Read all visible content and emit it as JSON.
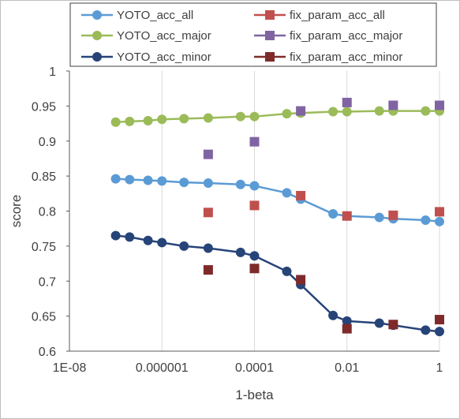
{
  "chart_data": {
    "type": "scatter",
    "xlabel": "1-beta",
    "ylabel": "score",
    "x_scale": "log",
    "xlim": [
      1e-08,
      1
    ],
    "ylim": [
      0.6,
      1
    ],
    "x_ticks": [
      {
        "value": 1e-08,
        "label": "1E-08"
      },
      {
        "value": 1e-06,
        "label": "0.000001"
      },
      {
        "value": 0.0001,
        "label": "0.0001"
      },
      {
        "value": 0.01,
        "label": "0.01"
      },
      {
        "value": 1,
        "label": "1"
      }
    ],
    "y_ticks": [
      {
        "value": 0.6,
        "label": "0.6"
      },
      {
        "value": 0.65,
        "label": "0.65"
      },
      {
        "value": 0.7,
        "label": "0.7"
      },
      {
        "value": 0.75,
        "label": "0.75"
      },
      {
        "value": 0.8,
        "label": "0.8"
      },
      {
        "value": 0.85,
        "label": "0.85"
      },
      {
        "value": 0.9,
        "label": "0.9"
      },
      {
        "value": 0.95,
        "label": "0.95"
      },
      {
        "value": 1,
        "label": "1"
      }
    ],
    "grid": "vertical major gridlines",
    "legend_position": "top",
    "series": [
      {
        "name": "YOTO_acc_all",
        "color": "#5b9bd5",
        "marker": "circle",
        "line": true,
        "x": [
          1e-07,
          2e-07,
          5e-07,
          1e-06,
          3e-06,
          1e-05,
          5e-05,
          0.0001,
          0.0005,
          0.001,
          0.005,
          0.01,
          0.05,
          0.1,
          0.5,
          1
        ],
        "y": [
          0.846,
          0.845,
          0.844,
          0.843,
          0.841,
          0.84,
          0.838,
          0.836,
          0.826,
          0.817,
          0.796,
          0.793,
          0.791,
          0.789,
          0.787,
          0.785
        ]
      },
      {
        "name": "YOTO_acc_major",
        "color": "#9bbb59",
        "marker": "circle",
        "line": true,
        "x": [
          1e-07,
          2e-07,
          5e-07,
          1e-06,
          3e-06,
          1e-05,
          5e-05,
          0.0001,
          0.0005,
          0.001,
          0.005,
          0.01,
          0.05,
          0.1,
          0.5,
          1
        ],
        "y": [
          0.927,
          0.928,
          0.929,
          0.931,
          0.932,
          0.933,
          0.935,
          0.935,
          0.939,
          0.94,
          0.942,
          0.942,
          0.943,
          0.943,
          0.943,
          0.943
        ]
      },
      {
        "name": "YOTO_acc_minor",
        "color": "#264478",
        "marker": "circle",
        "line": true,
        "x": [
          1e-07,
          2e-07,
          5e-07,
          1e-06,
          3e-06,
          1e-05,
          5e-05,
          0.0001,
          0.0005,
          0.001,
          0.005,
          0.01,
          0.05,
          0.1,
          0.5,
          1
        ],
        "y": [
          0.765,
          0.763,
          0.758,
          0.755,
          0.75,
          0.747,
          0.741,
          0.736,
          0.714,
          0.695,
          0.651,
          0.643,
          0.64,
          0.637,
          0.63,
          0.628
        ]
      },
      {
        "name": "fix_param_acc_all",
        "color": "#c0504d",
        "marker": "square",
        "line": false,
        "x": [
          1e-05,
          0.0001,
          0.001,
          0.01,
          0.1,
          1
        ],
        "y": [
          0.798,
          0.808,
          0.822,
          0.793,
          0.794,
          0.799
        ]
      },
      {
        "name": "fix_param_acc_major",
        "color": "#8064a2",
        "marker": "square",
        "line": false,
        "x": [
          1e-05,
          0.0001,
          0.001,
          0.01,
          0.1,
          1
        ],
        "y": [
          0.881,
          0.899,
          0.943,
          0.955,
          0.951,
          0.951
        ]
      },
      {
        "name": "fix_param_acc_minor",
        "color": "#7f2a2a",
        "marker": "square",
        "line": false,
        "x": [
          1e-05,
          0.0001,
          0.001,
          0.01,
          0.1,
          1
        ],
        "y": [
          0.716,
          0.718,
          0.702,
          0.632,
          0.638,
          0.645
        ]
      }
    ]
  }
}
